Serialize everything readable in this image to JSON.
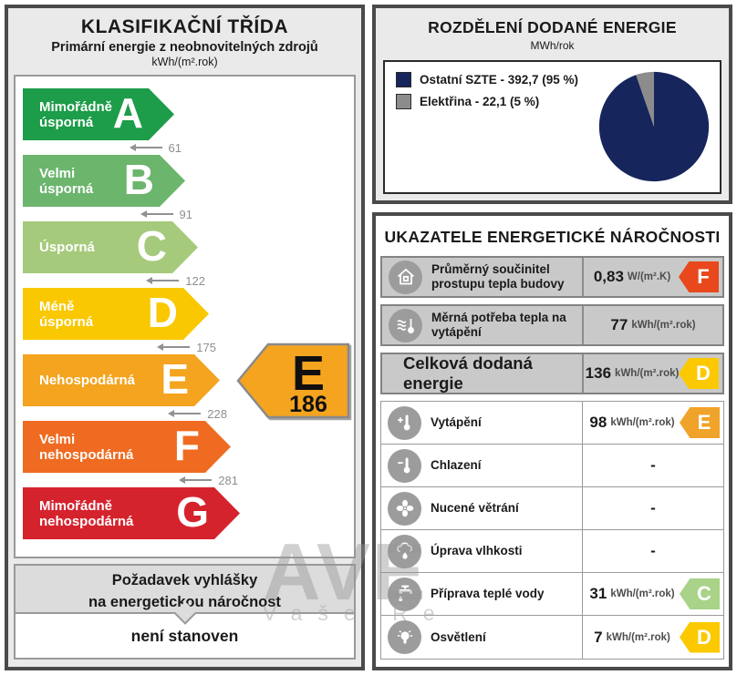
{
  "left_panel": {
    "title": "KLASIFIKAČNÍ TŘÍDA",
    "subtitle": "Primární energie z neobnovitelných zdrojů",
    "unit": "kWh/(m².rok)",
    "classes": [
      {
        "letter": "A",
        "label": "Mimořádně úsporná",
        "color": "#1d9c49",
        "threshold": "61"
      },
      {
        "letter": "B",
        "label": "Velmi úsporná",
        "color": "#6cb56d",
        "threshold": "91"
      },
      {
        "letter": "C",
        "label": "Úsporná",
        "color": "#a6ca7c",
        "threshold": "122"
      },
      {
        "letter": "D",
        "label": "Méně úsporná",
        "color": "#f9c801",
        "threshold": "175"
      },
      {
        "letter": "E",
        "label": "Nehospodárná",
        "color": "#f4a41f",
        "threshold": "228"
      },
      {
        "letter": "F",
        "label": "Velmi nehospodárná",
        "color": "#ef6b21",
        "threshold": "281"
      },
      {
        "letter": "G",
        "label": "Mimořádně nehospodárná",
        "color": "#d5232e",
        "threshold": null
      }
    ],
    "rating": {
      "letter": "E",
      "value": "186",
      "color": "#f4a41f"
    },
    "requirement": {
      "line1": "Požadavek vyhlášky",
      "line2": "na energetickou náročnost",
      "value": "není stanoven"
    }
  },
  "energy_distribution": {
    "title": "ROZDĚLENÍ DODANÉ ENERGIE",
    "unit": "MWh/rok",
    "chart_data": {
      "type": "pie",
      "labels": [
        "Ostatní SZTE",
        "Elektřina"
      ],
      "values": [
        392.7,
        22.1
      ],
      "percents": [
        95,
        5
      ],
      "colors": [
        "#16265c",
        "#8c8c8c"
      ],
      "legend": [
        "Ostatní SZTE - 392,7 (95 %)",
        "Elektřina - 22,1 (5 %)"
      ],
      "legend_position": "top-left",
      "start_angle_deg_from_north": 0,
      "direction": "clockwise"
    }
  },
  "indicators": {
    "title": "UKAZATELE ENERGETICKÉ NÁROČNOSTI",
    "rows": [
      {
        "icon": "house-icon",
        "label": "Průměrný součinitel prostupu tepla budovy",
        "value": "0,83",
        "unit": "W/(m².K)",
        "class": "F",
        "class_color": "#e8481c"
      },
      {
        "icon": "heating-waves-icon",
        "label": "Měrná potřeba tepla na vytápění",
        "value": "77",
        "unit": "kWh/(m².rok)",
        "class": null,
        "class_color": null
      },
      {
        "icon": null,
        "label": "Celková dodaná energie",
        "value": "136",
        "unit": "kWh/(m².rok)",
        "class": "D",
        "class_color": "#fcc900"
      },
      {
        "icon": "thermometer-plus-icon",
        "label": "Vytápění",
        "value": "98",
        "unit": "kWh/(m².rok)",
        "class": "E",
        "class_color": "#f0a32a"
      },
      {
        "icon": "thermometer-minus-icon",
        "label": "Chlazení",
        "value": "-",
        "unit": "",
        "class": null,
        "class_color": null
      },
      {
        "icon": "fan-icon",
        "label": "Nucené větrání",
        "value": "-",
        "unit": "",
        "class": null,
        "class_color": null
      },
      {
        "icon": "humidity-icon",
        "label": "Úprava vlhkosti",
        "value": "-",
        "unit": "",
        "class": null,
        "class_color": null
      },
      {
        "icon": "hot-water-icon",
        "label": "Příprava teplé vody",
        "value": "31",
        "unit": "kWh/(m².rok)",
        "class": "C",
        "class_color": "#a8d388"
      },
      {
        "icon": "lighting-icon",
        "label": "Osvětlení",
        "value": "7",
        "unit": "kWh/(m².rok)",
        "class": "D",
        "class_color": "#fcc900"
      }
    ]
  },
  "watermark": {
    "line1": "AVE",
    "line2": "Vaše Re"
  }
}
